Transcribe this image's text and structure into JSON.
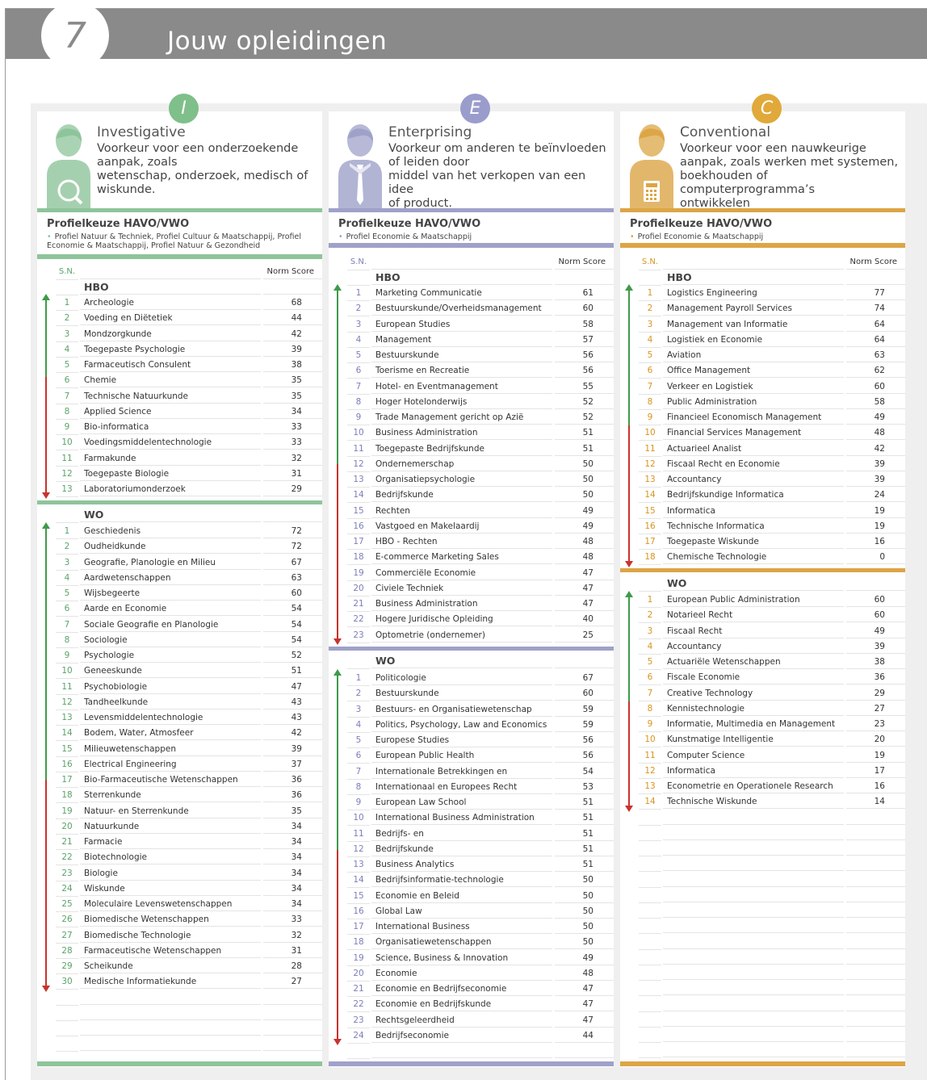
{
  "page": {
    "number": "7",
    "title": "Jouw opleidingen"
  },
  "columns": [
    {
      "key": "investigative",
      "letter": "I",
      "color": "#7fbf8a",
      "accent": "#8ec49b",
      "sn_color": "#5aa36a",
      "icon": "magnifier-icon",
      "title": "Investigative",
      "description": "Voorkeur voor een onderzoekende\naanpak, zoals\nwetenschap, onderzoek, medisch of\nwiskunde.",
      "profielkeuze_title": "Profielkeuze HAVO/VWO",
      "profielkeuze_items": [
        "Profiel Natuur & Techniek, Profiel Cultuur & Maatschappij, Profiel Economie & Maatschappij, Profiel Natuur & Gezondheid"
      ],
      "sn_label": "S.N.",
      "score_label": "Norm Score",
      "sections": [
        {
          "label": "HBO",
          "green_fraction": 0.4,
          "rows": [
            {
              "sn": "1",
              "name": "Archeologie",
              "score": "68"
            },
            {
              "sn": "2",
              "name": "Voeding en Diëtetiek",
              "score": "44"
            },
            {
              "sn": "3",
              "name": "Mondzorgkunde",
              "score": "42"
            },
            {
              "sn": "4",
              "name": "Toegepaste Psychologie",
              "score": "39"
            },
            {
              "sn": "5",
              "name": "Farmaceutisch Consulent",
              "score": "38"
            },
            {
              "sn": "6",
              "name": "Chemie",
              "score": "35"
            },
            {
              "sn": "7",
              "name": "Technische Natuurkunde",
              "score": "35"
            },
            {
              "sn": "8",
              "name": "Applied Science",
              "score": "34"
            },
            {
              "sn": "9",
              "name": "Bio-informatica",
              "score": "33"
            },
            {
              "sn": "10",
              "name": "Voedingsmiddelentechnologie",
              "score": "33"
            },
            {
              "sn": "11",
              "name": "Farmakunde",
              "score": "32"
            },
            {
              "sn": "12",
              "name": "Toegepaste Biologie",
              "score": "31"
            },
            {
              "sn": "13",
              "name": "Laboratoriumonderzoek",
              "score": "29"
            }
          ]
        },
        {
          "label": "WO",
          "green_fraction": 0.55,
          "rows": [
            {
              "sn": "1",
              "name": "Geschiedenis",
              "score": "72"
            },
            {
              "sn": "2",
              "name": "Oudheidkunde",
              "score": "72"
            },
            {
              "sn": "3",
              "name": "Geografie, Planologie en Milieu",
              "score": "67"
            },
            {
              "sn": "4",
              "name": "Aardwetenschappen",
              "score": "63"
            },
            {
              "sn": "5",
              "name": "Wijsbegeerte",
              "score": "60"
            },
            {
              "sn": "6",
              "name": "Aarde en Economie",
              "score": "54"
            },
            {
              "sn": "7",
              "name": "Sociale Geografie en Planologie",
              "score": "54"
            },
            {
              "sn": "8",
              "name": "Sociologie",
              "score": "54"
            },
            {
              "sn": "9",
              "name": "Psychologie",
              "score": "52"
            },
            {
              "sn": "10",
              "name": "Geneeskunde",
              "score": "51"
            },
            {
              "sn": "11",
              "name": "Psychobiologie",
              "score": "47"
            },
            {
              "sn": "12",
              "name": "Tandheelkunde",
              "score": "43"
            },
            {
              "sn": "13",
              "name": "Levensmiddelentechnologie",
              "score": "43"
            },
            {
              "sn": "14",
              "name": "Bodem, Water, Atmosfeer",
              "score": "42"
            },
            {
              "sn": "15",
              "name": "Milieuwetenschappen",
              "score": "39"
            },
            {
              "sn": "16",
              "name": "Electrical Engineering",
              "score": "37"
            },
            {
              "sn": "17",
              "name": "Bio-Farmaceutische Wetenschappen",
              "score": "36"
            },
            {
              "sn": "18",
              "name": "Sterrenkunde",
              "score": "36"
            },
            {
              "sn": "19",
              "name": "Natuur- en Sterrenkunde",
              "score": "35"
            },
            {
              "sn": "20",
              "name": "Natuurkunde",
              "score": "34"
            },
            {
              "sn": "21",
              "name": "Farmacie",
              "score": "34"
            },
            {
              "sn": "22",
              "name": "Biotechnologie",
              "score": "34"
            },
            {
              "sn": "23",
              "name": "Biologie",
              "score": "34"
            },
            {
              "sn": "24",
              "name": "Wiskunde",
              "score": "34"
            },
            {
              "sn": "25",
              "name": "Moleculaire Levenswetenschappen",
              "score": "34"
            },
            {
              "sn": "26",
              "name": "Biomedische Wetenschappen",
              "score": "33"
            },
            {
              "sn": "27",
              "name": "Biomedische Technologie",
              "score": "32"
            },
            {
              "sn": "28",
              "name": "Farmaceutische Wetenschappen",
              "score": "31"
            },
            {
              "sn": "29",
              "name": "Scheikunde",
              "score": "28"
            },
            {
              "sn": "30",
              "name": "Medische Informatiekunde",
              "score": "27"
            }
          ]
        }
      ]
    },
    {
      "key": "enterprising",
      "letter": "E",
      "color": "#9a9ccc",
      "accent": "#9fa1c9",
      "sn_color": "#7c7fb8",
      "icon": "tie-icon",
      "title": "Enterprising",
      "description": "Voorkeur om anderen te beïnvloeden\nof leiden door\nmiddel van het verkopen van een idee\nof product.",
      "profielkeuze_title": "Profielkeuze HAVO/VWO",
      "profielkeuze_items": [
        "Profiel Economie & Maatschappij"
      ],
      "sn_label": "S.N.",
      "score_label": "Norm Score",
      "sections": [
        {
          "label": "HBO",
          "green_fraction": 0.5,
          "rows": [
            {
              "sn": "1",
              "name": "Marketing Communicatie",
              "score": "61"
            },
            {
              "sn": "2",
              "name": "Bestuurskunde/Overheidsmanagement",
              "score": "60"
            },
            {
              "sn": "3",
              "name": "European Studies",
              "score": "58"
            },
            {
              "sn": "4",
              "name": "Management",
              "score": "57"
            },
            {
              "sn": "5",
              "name": "Bestuurskunde",
              "score": "56"
            },
            {
              "sn": "6",
              "name": "Toerisme en Recreatie",
              "score": "56"
            },
            {
              "sn": "7",
              "name": "Hotel- en Eventmanagement",
              "score": "55"
            },
            {
              "sn": "8",
              "name": "Hoger Hotelonderwijs",
              "score": "52"
            },
            {
              "sn": "9",
              "name": "Trade Management gericht op Azië",
              "score": "52"
            },
            {
              "sn": "10",
              "name": "Business Administration",
              "score": "51"
            },
            {
              "sn": "11",
              "name": "Toegepaste Bedrijfskunde",
              "score": "51"
            },
            {
              "sn": "12",
              "name": "Ondernemerschap",
              "score": "50"
            },
            {
              "sn": "13",
              "name": "Organisatiepsychologie",
              "score": "50"
            },
            {
              "sn": "14",
              "name": "Bedrijfskunde",
              "score": "50"
            },
            {
              "sn": "15",
              "name": "Rechten",
              "score": "49"
            },
            {
              "sn": "16",
              "name": "Vastgoed en Makelaardij",
              "score": "49"
            },
            {
              "sn": "17",
              "name": "HBO - Rechten",
              "score": "48"
            },
            {
              "sn": "18",
              "name": "E-commerce Marketing Sales",
              "score": "48"
            },
            {
              "sn": "19",
              "name": "Commerciële Economie",
              "score": "47"
            },
            {
              "sn": "20",
              "name": "Civiele Techniek",
              "score": "47"
            },
            {
              "sn": "21",
              "name": "Business Administration",
              "score": "47"
            },
            {
              "sn": "22",
              "name": "Hogere Juridische Opleiding",
              "score": "40"
            },
            {
              "sn": "23",
              "name": "Optometrie (ondernemer)",
              "score": "25"
            }
          ]
        },
        {
          "label": "WO",
          "green_fraction": 0.48,
          "rows": [
            {
              "sn": "1",
              "name": "Politicologie",
              "score": "67"
            },
            {
              "sn": "2",
              "name": "Bestuurskunde",
              "score": "60"
            },
            {
              "sn": "3",
              "name": "Bestuurs- en Organisatiewetenschap",
              "score": "59"
            },
            {
              "sn": "4",
              "name": "Politics, Psychology, Law and Economics",
              "score": "59"
            },
            {
              "sn": "5",
              "name": "Europese Studies",
              "score": "56"
            },
            {
              "sn": "6",
              "name": "European Public Health",
              "score": "56"
            },
            {
              "sn": "7",
              "name": "Internationale Betrekkingen en",
              "score": "54"
            },
            {
              "sn": "8",
              "name": "Internationaal en Europees Recht",
              "score": "53"
            },
            {
              "sn": "9",
              "name": "European Law School",
              "score": "51"
            },
            {
              "sn": "10",
              "name": "International Business Administration",
              "score": "51"
            },
            {
              "sn": "11",
              "name": "Bedrijfs- en",
              "score": "51"
            },
            {
              "sn": "12",
              "name": "Bedrijfskunde",
              "score": "51"
            },
            {
              "sn": "13",
              "name": "Business Analytics",
              "score": "51"
            },
            {
              "sn": "14",
              "name": "Bedrijfsinformatie-technologie",
              "score": "50"
            },
            {
              "sn": "15",
              "name": "Economie en Beleid",
              "score": "50"
            },
            {
              "sn": "16",
              "name": "Global Law",
              "score": "50"
            },
            {
              "sn": "17",
              "name": "International Business",
              "score": "50"
            },
            {
              "sn": "18",
              "name": "Organisatiewetenschappen",
              "score": "50"
            },
            {
              "sn": "19",
              "name": "Science, Business & Innovation",
              "score": "49"
            },
            {
              "sn": "20",
              "name": "Economie",
              "score": "48"
            },
            {
              "sn": "21",
              "name": "Economie en Bedrijfseconomie",
              "score": "47"
            },
            {
              "sn": "22",
              "name": "Economie en Bedrijfskunde",
              "score": "47"
            },
            {
              "sn": "23",
              "name": "Rechtsgeleerdheid",
              "score": "47"
            },
            {
              "sn": "24",
              "name": "Bedrijfseconomie",
              "score": "44"
            }
          ]
        }
      ]
    },
    {
      "key": "conventional",
      "letter": "C",
      "color": "#e0a93a",
      "accent": "#dca546",
      "sn_color": "#d6951f",
      "icon": "calculator-icon",
      "title": "Conventional",
      "description": "Voorkeur voor een nauwkeurige\naanpak, zoals werken met systemen,\nboekhouden of computerprogramma’s\nontwikkelen",
      "profielkeuze_title": "Profielkeuze HAVO/VWO",
      "profielkeuze_items": [
        "Profiel Economie & Maatschappij"
      ],
      "sn_label": "S.N.",
      "score_label": "Norm Score",
      "sections": [
        {
          "label": "HBO",
          "green_fraction": 0.5,
          "rows": [
            {
              "sn": "1",
              "name": "Logistics Engineering",
              "score": "77"
            },
            {
              "sn": "2",
              "name": "Management Payroll Services",
              "score": "74"
            },
            {
              "sn": "3",
              "name": "Management van Informatie",
              "score": "64"
            },
            {
              "sn": "4",
              "name": "Logistiek en Economie",
              "score": "64"
            },
            {
              "sn": "5",
              "name": "Aviation",
              "score": "63"
            },
            {
              "sn": "6",
              "name": "Office Management",
              "score": "62"
            },
            {
              "sn": "7",
              "name": "Verkeer en Logistiek",
              "score": "60"
            },
            {
              "sn": "8",
              "name": "Public Administration",
              "score": "58"
            },
            {
              "sn": "9",
              "name": "Financieel Economisch Management",
              "score": "49"
            },
            {
              "sn": "10",
              "name": "Financial Services Management",
              "score": "48"
            },
            {
              "sn": "11",
              "name": "Actuarieel Analist",
              "score": "42"
            },
            {
              "sn": "12",
              "name": "Fiscaal Recht en Economie",
              "score": "39"
            },
            {
              "sn": "13",
              "name": "Accountancy",
              "score": "39"
            },
            {
              "sn": "14",
              "name": "Bedrijfskundige Informatica",
              "score": "24"
            },
            {
              "sn": "15",
              "name": "Informatica",
              "score": "19"
            },
            {
              "sn": "16",
              "name": "Technische Informatica",
              "score": "19"
            },
            {
              "sn": "17",
              "name": "Toegepaste Wiskunde",
              "score": "16"
            },
            {
              "sn": "18",
              "name": "Chemische Technologie",
              "score": "0"
            }
          ]
        },
        {
          "label": "WO",
          "green_fraction": 0.5,
          "rows": [
            {
              "sn": "1",
              "name": "European Public Administration",
              "score": "60"
            },
            {
              "sn": "2",
              "name": "Notarieel Recht",
              "score": "60"
            },
            {
              "sn": "3",
              "name": "Fiscaal Recht",
              "score": "49"
            },
            {
              "sn": "4",
              "name": "Accountancy",
              "score": "39"
            },
            {
              "sn": "5",
              "name": "Actuariële Wetenschappen",
              "score": "38"
            },
            {
              "sn": "6",
              "name": "Fiscale Economie",
              "score": "36"
            },
            {
              "sn": "7",
              "name": "Creative Technology",
              "score": "29"
            },
            {
              "sn": "8",
              "name": "Kennistechnologie",
              "score": "27"
            },
            {
              "sn": "9",
              "name": "Informatie, Multimedia en Management",
              "score": "23"
            },
            {
              "sn": "10",
              "name": "Kunstmatige Intelligentie",
              "score": "20"
            },
            {
              "sn": "11",
              "name": "Computer Science",
              "score": "19"
            },
            {
              "sn": "12",
              "name": "Informatica",
              "score": "17"
            },
            {
              "sn": "13",
              "name": "Econometrie en Operationele Research",
              "score": "16"
            },
            {
              "sn": "14",
              "name": "Technische Wiskunde",
              "score": "14"
            }
          ]
        }
      ]
    }
  ]
}
